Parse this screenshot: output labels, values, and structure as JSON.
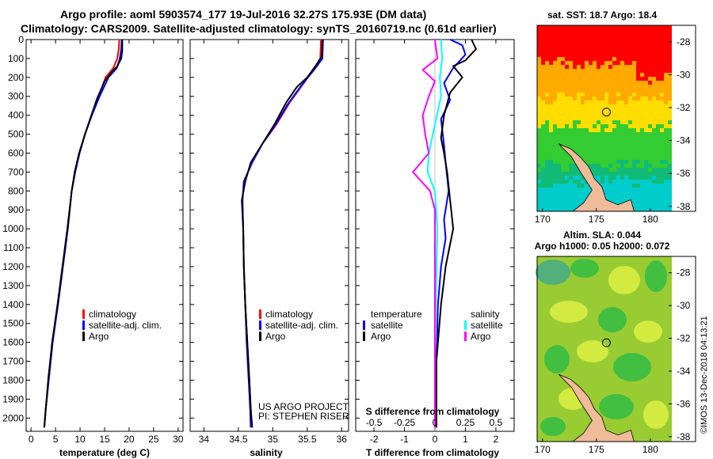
{
  "title": {
    "line1": "Argo profile: aoml 5903574_177 19-Jul-2016 32.27S 175.93E (DM data)",
    "line2": "Climatology: CARS2009. Satellite-adjusted climatology: synTS_20160719.nc (0.61d earlier)"
  },
  "colors": {
    "climatology": "#ff0000",
    "satellite": "#0000ff",
    "argo": "#000000",
    "satellite_s": "#00ffff",
    "argo_s": "#ff00ff"
  },
  "chart_data": [
    {
      "type": "line",
      "name": "temperature",
      "xlabel": "temperature (deg C)",
      "xlim": [
        -1,
        31
      ],
      "xticks": [
        0,
        5,
        10,
        15,
        20,
        25,
        30
      ],
      "ylim": [
        2070,
        0
      ],
      "yticks": [
        0,
        100,
        200,
        300,
        400,
        500,
        600,
        700,
        800,
        900,
        1000,
        1100,
        1200,
        1300,
        1400,
        1500,
        1600,
        1700,
        1800,
        1900,
        2000
      ],
      "legend": [
        "climatology",
        "satellite-adj. clim.",
        "Argo"
      ],
      "series": [
        {
          "name": "climatology",
          "color_key": "climatology",
          "points": [
            [
              18.0,
              0
            ],
            [
              17.9,
              50
            ],
            [
              17.6,
              100
            ],
            [
              16.8,
              150
            ],
            [
              15.2,
              200
            ],
            [
              13.8,
              300
            ],
            [
              12.4,
              400
            ],
            [
              11.0,
              500
            ],
            [
              9.9,
              600
            ],
            [
              9.0,
              700
            ],
            [
              8.3,
              800
            ],
            [
              7.5,
              1000
            ],
            [
              6.5,
              1200
            ],
            [
              5.5,
              1400
            ],
            [
              4.4,
              1600
            ],
            [
              3.6,
              1800
            ],
            [
              3.0,
              1950
            ],
            [
              2.7,
              2050
            ]
          ]
        },
        {
          "name": "satellite-adj. clim.",
          "color_key": "satellite",
          "points": [
            [
              18.5,
              0
            ],
            [
              18.4,
              50
            ],
            [
              18.1,
              100
            ],
            [
              17.5,
              150
            ],
            [
              15.8,
              200
            ],
            [
              14.0,
              300
            ],
            [
              12.4,
              400
            ],
            [
              11.0,
              500
            ],
            [
              9.9,
              600
            ],
            [
              9.0,
              700
            ],
            [
              8.3,
              800
            ],
            [
              7.5,
              1000
            ],
            [
              6.5,
              1200
            ],
            [
              5.5,
              1400
            ],
            [
              4.4,
              1600
            ],
            [
              3.6,
              1800
            ],
            [
              3.0,
              1950
            ],
            [
              2.7,
              2050
            ]
          ]
        },
        {
          "name": "Argo",
          "color_key": "argo",
          "points": [
            [
              18.6,
              0
            ],
            [
              18.6,
              60
            ],
            [
              18.4,
              100
            ],
            [
              17.6,
              140
            ],
            [
              16.5,
              170
            ],
            [
              15.0,
              220
            ],
            [
              13.5,
              310
            ],
            [
              12.3,
              400
            ],
            [
              11.0,
              500
            ],
            [
              9.8,
              600
            ],
            [
              8.9,
              700
            ],
            [
              8.3,
              800
            ],
            [
              7.4,
              1000
            ],
            [
              6.4,
              1200
            ],
            [
              5.4,
              1400
            ],
            [
              4.3,
              1600
            ],
            [
              3.5,
              1800
            ],
            [
              3.0,
              1950
            ],
            [
              2.7,
              2050
            ]
          ]
        }
      ]
    },
    {
      "type": "line",
      "name": "salinity",
      "xlabel": "salinity",
      "xlim": [
        33.8,
        36.1
      ],
      "xticks": [
        34,
        34.5,
        35,
        35.5,
        36
      ],
      "ylim": [
        2070,
        0
      ],
      "legend": [
        "climatology",
        "satellite-adj. clim.",
        "Argo"
      ],
      "series": [
        {
          "name": "climatology",
          "color_key": "climatology",
          "points": [
            [
              35.7,
              0
            ],
            [
              35.69,
              100
            ],
            [
              35.6,
              150
            ],
            [
              35.45,
              230
            ],
            [
              35.25,
              330
            ],
            [
              35.05,
              450
            ],
            [
              34.85,
              550
            ],
            [
              34.7,
              650
            ],
            [
              34.58,
              750
            ],
            [
              34.56,
              850
            ],
            [
              34.57,
              1000
            ],
            [
              34.58,
              1200
            ],
            [
              34.6,
              1400
            ],
            [
              34.63,
              1600
            ],
            [
              34.66,
              1800
            ],
            [
              34.68,
              1950
            ],
            [
              34.7,
              2050
            ]
          ]
        },
        {
          "name": "satellite-adj. clim.",
          "color_key": "satellite",
          "points": [
            [
              35.73,
              0
            ],
            [
              35.72,
              100
            ],
            [
              35.6,
              160
            ],
            [
              35.42,
              240
            ],
            [
              35.22,
              340
            ],
            [
              35.04,
              450
            ],
            [
              34.85,
              550
            ],
            [
              34.7,
              650
            ],
            [
              34.58,
              750
            ],
            [
              34.56,
              850
            ],
            [
              34.57,
              1000
            ],
            [
              34.58,
              1200
            ],
            [
              34.6,
              1400
            ],
            [
              34.62,
              1600
            ],
            [
              34.65,
              1800
            ],
            [
              34.67,
              1950
            ],
            [
              34.68,
              2050
            ]
          ]
        },
        {
          "name": "Argo",
          "color_key": "argo",
          "points": [
            [
              35.72,
              0
            ],
            [
              35.71,
              90
            ],
            [
              35.62,
              140
            ],
            [
              35.5,
              200
            ],
            [
              35.35,
              250
            ],
            [
              35.2,
              330
            ],
            [
              35.02,
              450
            ],
            [
              34.85,
              550
            ],
            [
              34.68,
              650
            ],
            [
              34.6,
              750
            ],
            [
              34.55,
              850
            ],
            [
              34.57,
              1000
            ],
            [
              34.58,
              1200
            ],
            [
              34.6,
              1400
            ],
            [
              34.63,
              1600
            ],
            [
              34.66,
              1800
            ],
            [
              34.68,
              1950
            ],
            [
              34.7,
              2050
            ]
          ]
        }
      ]
    },
    {
      "type": "line",
      "name": "differences",
      "xlabel": "T difference from climatology",
      "xlim": [
        -2.6,
        2.6
      ],
      "xticks": [
        -2,
        -1,
        0,
        1,
        2
      ],
      "s_label": "S difference from climatology",
      "s_ticks": [
        "-0.5",
        "-0.25",
        "0",
        "0.25",
        "0.5"
      ],
      "ylim": [
        2070,
        0
      ],
      "legend_temperature": {
        "title": "temperature",
        "items": [
          "satellite",
          "Argo"
        ]
      },
      "legend_salinity": {
        "title": "salinity",
        "items": [
          "satellite",
          "Argo"
        ]
      },
      "series": [
        {
          "name": "T satellite",
          "color_key": "satellite",
          "points": [
            [
              0.5,
              0
            ],
            [
              0.9,
              30
            ],
            [
              1.0,
              80
            ],
            [
              0.6,
              150
            ],
            [
              0.3,
              230
            ],
            [
              0.5,
              320
            ],
            [
              0.2,
              420
            ],
            [
              0.3,
              560
            ],
            [
              0.35,
              650
            ],
            [
              0.45,
              800
            ],
            [
              0.3,
              950
            ],
            [
              0.35,
              1050
            ],
            [
              0.2,
              1200
            ],
            [
              0.1,
              1400
            ],
            [
              0.05,
              1700
            ],
            [
              0.05,
              2050
            ]
          ]
        },
        {
          "name": "T Argo",
          "color_key": "argo",
          "points": [
            [
              1.2,
              0
            ],
            [
              1.35,
              50
            ],
            [
              1.0,
              110
            ],
            [
              0.6,
              140
            ],
            [
              0.9,
              200
            ],
            [
              0.5,
              280
            ],
            [
              0.3,
              400
            ],
            [
              0.2,
              520
            ],
            [
              0.3,
              600
            ],
            [
              0.4,
              700
            ],
            [
              0.5,
              850
            ],
            [
              0.6,
              1000
            ],
            [
              0.5,
              1080
            ],
            [
              0.35,
              1200
            ],
            [
              0.2,
              1400
            ],
            [
              0.05,
              1700
            ],
            [
              0.05,
              2050
            ]
          ]
        },
        {
          "name": "S satellite",
          "color_key": "satellite_s",
          "points": [
            [
              0.05,
              0
            ],
            [
              0.06,
              100
            ],
            [
              0.04,
              200
            ],
            [
              0.05,
              300
            ],
            [
              0.0,
              450
            ],
            [
              -0.05,
              600
            ],
            [
              -0.06,
              700
            ],
            [
              0.0,
              800
            ],
            [
              0.02,
              1000
            ],
            [
              0.01,
              1300
            ],
            [
              0.0,
              1600
            ],
            [
              0.0,
              2050
            ]
          ]
        },
        {
          "name": "S Argo",
          "color_key": "argo_s",
          "points": [
            [
              0.0,
              0
            ],
            [
              0.02,
              100
            ],
            [
              -0.1,
              160
            ],
            [
              0.0,
              220
            ],
            [
              -0.05,
              300
            ],
            [
              -0.1,
              400
            ],
            [
              -0.08,
              500
            ],
            [
              -0.05,
              600
            ],
            [
              -0.18,
              700
            ],
            [
              -0.04,
              800
            ],
            [
              0.0,
              900
            ],
            [
              0.0,
              1000
            ],
            [
              0.0,
              1300
            ],
            [
              0.0,
              1600
            ],
            [
              0.0,
              2050
            ]
          ]
        }
      ]
    }
  ],
  "credits": {
    "line1": "US ARGO PROJECT",
    "line2": "PI: STEPHEN RISER"
  },
  "map_sst": {
    "title": "sat. SST: 18.7 Argo: 18.4",
    "xticks": [
      "170",
      "175",
      "180"
    ],
    "yticks": [
      "-28",
      "-30",
      "-32",
      "-34",
      "-36",
      "-38"
    ],
    "colors": {
      "red": "#ff0000",
      "orange": "#ffaa00",
      "yellow": "#ffdd00",
      "green": "#33cc33",
      "teal": "#11bb77",
      "cyan": "#00cccc",
      "land": "#f0bb99"
    }
  },
  "map_sla": {
    "title1": "Altim. SLA: 0.044",
    "title2": "Argo h1000: 0.05 h2000: 0.072",
    "xticks": [
      "170",
      "175",
      "180"
    ],
    "yticks": [
      "-28",
      "-30",
      "-32",
      "-34",
      "-36",
      "-38"
    ],
    "colors": {
      "base": "#99cc33",
      "yellow": "#ddee44",
      "green": "#33bb44",
      "teal": "#44aa88",
      "land": "#f0bb99"
    }
  },
  "stamp": "©IMOS 13-Dec-2018 04:13:21"
}
